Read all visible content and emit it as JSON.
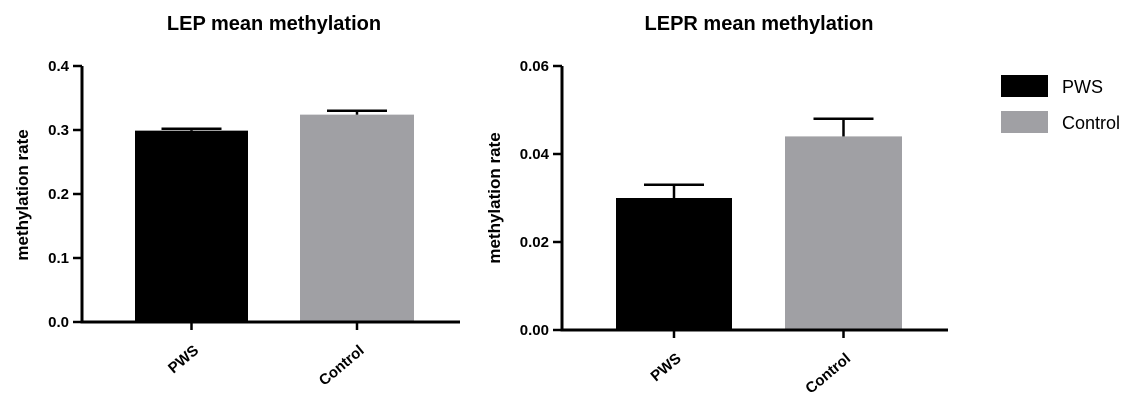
{
  "chart_data": [
    {
      "type": "bar",
      "title": "LEP mean methylation",
      "ylabel": "methylation rate",
      "xlabel": "",
      "categories": [
        "PWS",
        "Control"
      ],
      "values": [
        0.299,
        0.324
      ],
      "errors": [
        0.003,
        0.006
      ],
      "colors": [
        "#000000",
        "#a0a0a4"
      ],
      "ylim": [
        0,
        0.4
      ],
      "yticks": [
        0.0,
        0.1,
        0.2,
        0.3,
        0.4
      ],
      "ytick_labels": [
        "0.0",
        "0.1",
        "0.2",
        "0.3",
        "0.4"
      ],
      "grid": false
    },
    {
      "type": "bar",
      "title": "LEPR mean methylation",
      "ylabel": "methylation rate",
      "xlabel": "",
      "categories": [
        "PWS",
        "Control"
      ],
      "values": [
        0.03,
        0.044
      ],
      "errors": [
        0.003,
        0.004
      ],
      "colors": [
        "#000000",
        "#a0a0a4"
      ],
      "ylim": [
        0,
        0.06
      ],
      "yticks": [
        0.0,
        0.02,
        0.04,
        0.06
      ],
      "ytick_labels": [
        "0.00",
        "0.02",
        "0.04",
        "0.06"
      ],
      "grid": false
    }
  ],
  "legend": {
    "placement": "right",
    "entries": [
      {
        "label": "PWS",
        "color": "#000000"
      },
      {
        "label": "Control",
        "color": "#a0a0a4"
      }
    ]
  }
}
